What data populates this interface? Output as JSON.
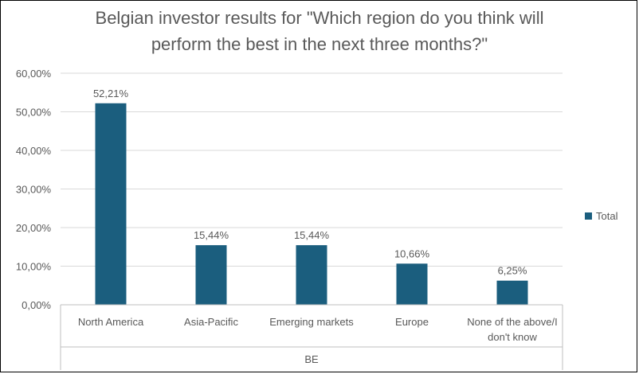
{
  "chart_data": {
    "type": "bar",
    "title_lines": [
      "Belgian investor results for \"Which region do you think will",
      "perform the best in the next three months?\""
    ],
    "categories": [
      [
        "North America"
      ],
      [
        "Asia-Pacific"
      ],
      [
        "Emerging markets"
      ],
      [
        "Europe"
      ],
      [
        "None of the above/I",
        "don't know"
      ]
    ],
    "group_label": "BE",
    "series": [
      {
        "name": "Total",
        "values": [
          52.21,
          15.44,
          15.44,
          10.66,
          6.25
        ],
        "labels": [
          "52,21%",
          "15,44%",
          "15,44%",
          "10,66%",
          "6,25%"
        ]
      }
    ],
    "ylim": [
      0,
      60
    ],
    "yticks": [
      0,
      10,
      20,
      30,
      40,
      50,
      60
    ],
    "ytick_labels": [
      "0,00%",
      "10,00%",
      "20,00%",
      "30,00%",
      "40,00%",
      "50,00%",
      "60,00%"
    ],
    "grid": true,
    "legend_position": "right",
    "colors": {
      "bar": "#1b5e7e",
      "grid": "#d9d9d9",
      "text": "#595959",
      "title": "#595959",
      "axis": "#bfbfbf"
    }
  }
}
